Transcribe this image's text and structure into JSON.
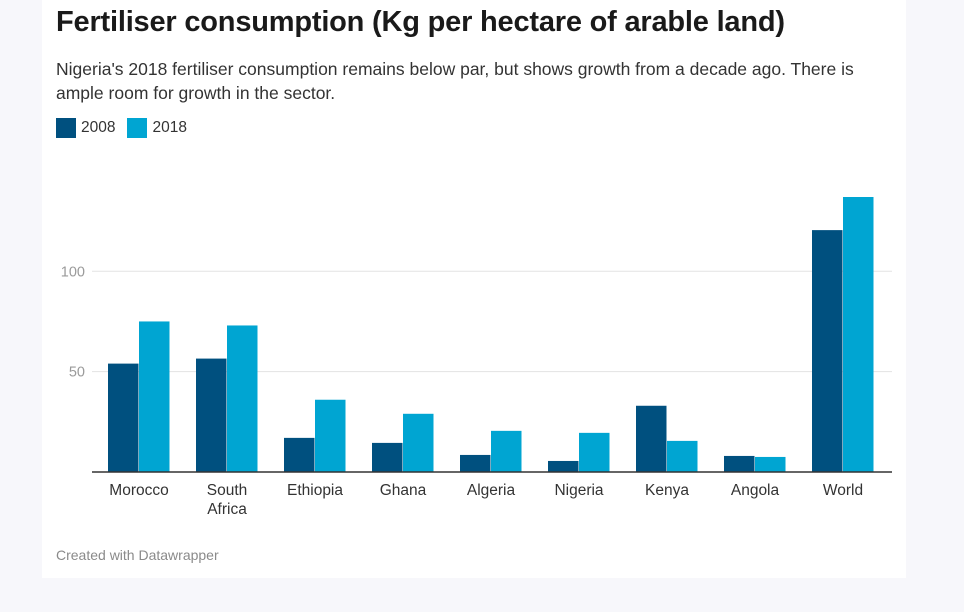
{
  "header": {
    "title": "Fertiliser consumption (Kg per hectare of arable land)",
    "subtitle": "Nigeria's 2018 fertiliser consumption remains below par, but shows growth from a decade ago. There is ample room for growth in the sector."
  },
  "footer": {
    "credit": "Created with Datawrapper"
  },
  "chart_data": {
    "type": "bar",
    "title": "Fertiliser consumption (Kg per hectare of arable land)",
    "subtitle": "Nigeria's 2018 fertiliser consumption remains below par, but shows growth from a decade ago. There is ample room for growth in the sector.",
    "categories": [
      "Morocco",
      "South Africa",
      "Ethiopia",
      "Ghana",
      "Algeria",
      "Nigeria",
      "Kenya",
      "Angola",
      "World"
    ],
    "category_lines": [
      [
        "Morocco"
      ],
      [
        "South",
        "Africa"
      ],
      [
        "Ethiopia"
      ],
      [
        "Ghana"
      ],
      [
        "Algeria"
      ],
      [
        "Nigeria"
      ],
      [
        "Kenya"
      ],
      [
        "Angola"
      ],
      [
        "World"
      ]
    ],
    "series": [
      {
        "name": "2008",
        "color": "#00507f",
        "values": [
          54,
          56.5,
          17,
          14.5,
          8.5,
          5.5,
          33,
          8,
          120.5
        ]
      },
      {
        "name": "2018",
        "color": "#00a5d2",
        "values": [
          75,
          73,
          36,
          29,
          20.5,
          19.5,
          15.5,
          7.5,
          137
        ]
      }
    ],
    "ylim": [
      0,
      137
    ],
    "yticks": [
      50,
      100
    ],
    "grid": true,
    "legend_position": "top-left",
    "xlabel": "",
    "ylabel": ""
  }
}
